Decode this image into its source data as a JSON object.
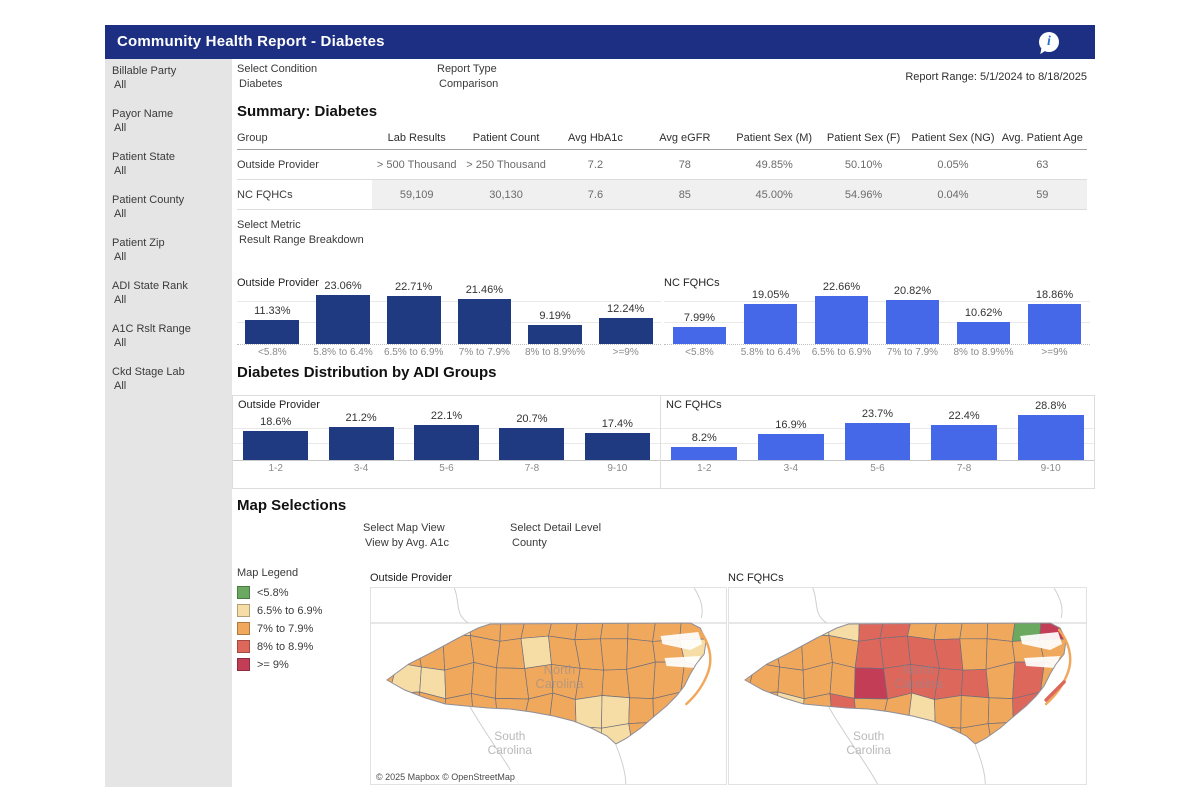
{
  "header": {
    "title": "Community Health Report - Diabetes",
    "info_icon": "info-bubble"
  },
  "sidebar": {
    "filters": [
      {
        "label": "Billable Party",
        "value": "All"
      },
      {
        "label": "Payor Name",
        "value": "All"
      },
      {
        "label": "Patient State",
        "value": "All"
      },
      {
        "label": "Patient County",
        "value": "All"
      },
      {
        "label": "Patient Zip",
        "value": "All"
      },
      {
        "label": "ADI State Rank",
        "value": "All"
      },
      {
        "label": "A1C Rslt Range",
        "value": "All"
      },
      {
        "label": "Ckd Stage Lab",
        "value": "All"
      }
    ]
  },
  "controls": {
    "select_condition": {
      "label": "Select Condition",
      "value": "Diabetes"
    },
    "report_type": {
      "label": "Report Type",
      "value": "Comparison"
    },
    "report_range": "Report Range: 5/1/2024 to 8/18/2025",
    "select_metric": {
      "label": "Select Metric",
      "value": "Result Range Breakdown"
    },
    "select_map_view": {
      "label": "Select Map View",
      "value": "View by Avg. A1c"
    },
    "select_detail_level": {
      "label": "Select Detail Level",
      "value": "County"
    }
  },
  "summary": {
    "title": "Summary: Diabetes",
    "columns": [
      "Group",
      "Lab Results",
      "Patient Count",
      "Avg HbA1c",
      "Avg eGFR",
      "Patient Sex (M)",
      "Patient Sex (F)",
      "Patient Sex (NG)",
      "Avg. Patient Age"
    ],
    "rows": [
      {
        "group": "Outside Provider",
        "values": [
          "> 500 Thousand",
          "> 250 Thousand",
          "7.2",
          "78",
          "49.85%",
          "50.10%",
          "0.05%",
          "63"
        ],
        "shaded": false
      },
      {
        "group": "NC FQHCs",
        "values": [
          "59,109",
          "30,130",
          "7.6",
          "85",
          "45.00%",
          "54.96%",
          "0.04%",
          "59"
        ],
        "shaded": true
      }
    ]
  },
  "sections": {
    "adi_title": "Diabetes Distribution by ADI Groups",
    "map_title": "Map Selections"
  },
  "chart_data": [
    {
      "type": "bar",
      "group": "Outside Provider",
      "metric": "Result Range Breakdown",
      "categories": [
        "<5.8%",
        "5.8% to 6.4%",
        "6.5% to 6.9%",
        "7% to 7.9%",
        "8% to 8.9%%",
        ">=9%"
      ],
      "values": [
        11.33,
        23.06,
        22.71,
        21.46,
        9.19,
        12.24
      ],
      "value_labels": [
        "11.33%",
        "23.06%",
        "22.71%",
        "21.46%",
        "9.19%",
        "12.24%"
      ],
      "ylim": [
        0,
        25
      ],
      "color": "#1f3a80",
      "grid": true,
      "legend_position": "none"
    },
    {
      "type": "bar",
      "group": "NC FQHCs",
      "metric": "Result Range Breakdown",
      "categories": [
        "<5.8%",
        "5.8% to 6.4%",
        "6.5% to 6.9%",
        "7% to 7.9%",
        "8% to 8.9%%",
        ">=9%"
      ],
      "values": [
        7.99,
        19.05,
        22.66,
        20.82,
        10.62,
        18.86
      ],
      "value_labels": [
        "7.99%",
        "19.05%",
        "22.66%",
        "20.82%",
        "10.62%",
        "18.86%"
      ],
      "ylim": [
        0,
        25
      ],
      "color": "#4468e8",
      "grid": true,
      "legend_position": "none"
    },
    {
      "type": "bar",
      "group": "Outside Provider",
      "metric": "Diabetes Distribution by ADI Groups",
      "categories": [
        "1-2",
        "3-4",
        "5-6",
        "7-8",
        "9-10"
      ],
      "values": [
        18.6,
        21.2,
        22.1,
        20.7,
        17.4
      ],
      "value_labels": [
        "18.6%",
        "21.2%",
        "22.1%",
        "20.7%",
        "17.4%"
      ],
      "ylim": [
        0,
        30
      ],
      "color": "#1f3a80",
      "grid": true,
      "legend_position": "none"
    },
    {
      "type": "bar",
      "group": "NC FQHCs",
      "metric": "Diabetes Distribution by ADI Groups",
      "categories": [
        "1-2",
        "3-4",
        "5-6",
        "7-8",
        "9-10"
      ],
      "values": [
        8.2,
        16.9,
        23.7,
        22.4,
        28.8
      ],
      "value_labels": [
        "8.2%",
        "16.9%",
        "23.7%",
        "22.4%",
        "28.8%"
      ],
      "ylim": [
        0,
        30
      ],
      "color": "#4468e8",
      "grid": true,
      "legend_position": "none"
    }
  ],
  "map": {
    "legend": {
      "title": "Map Legend",
      "items": [
        {
          "label": "<5.8%",
          "color": "#6aa95f"
        },
        {
          "label": "6.5% to 6.9%",
          "color": "#f6dda6"
        },
        {
          "label": "7% to 7.9%",
          "color": "#f0a85c"
        },
        {
          "label": "8% to 8.9%",
          "color": "#de675c"
        },
        {
          "label": ">= 9%",
          "color": "#c23d55"
        }
      ]
    },
    "panels": [
      {
        "title": "Outside Provider",
        "attribution": "© 2025 Mapbox © OpenStreetMap"
      },
      {
        "title": "NC FQHCs",
        "attribution": ""
      }
    ],
    "state_labels": {
      "primary": "North Carolina",
      "neighbor_line1": "South",
      "neighbor_line2": "Carolina"
    }
  }
}
